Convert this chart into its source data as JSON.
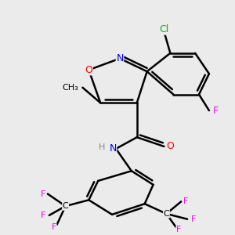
{
  "bg_color": "#ebebeb",
  "bond_color": "#000000",
  "bond_width": 1.8,
  "colors": {
    "N": "#0000ff",
    "O": "#ff0000",
    "Cl": "#00bb00",
    "F": "#ee00ee",
    "C": "#000000",
    "H": "#888888"
  }
}
